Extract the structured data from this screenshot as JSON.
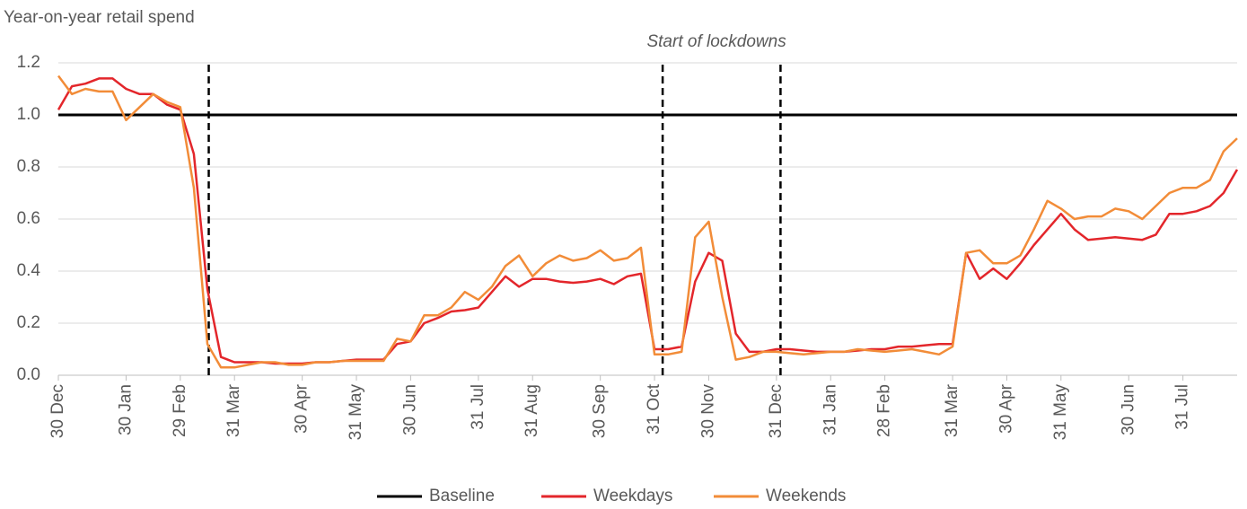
{
  "chart_data": {
    "type": "line",
    "ylabel": "Year-on-year  retail spend",
    "annotation": "Start of lockdowns",
    "vlines": [
      11.1,
      44.6,
      53.3
    ],
    "categories": [
      "30 Dec",
      null,
      null,
      null,
      null,
      "30 Jan",
      null,
      null,
      null,
      "29 Feb",
      null,
      null,
      null,
      "31 Mar",
      null,
      null,
      null,
      null,
      "30 Apr",
      null,
      null,
      null,
      "31 May",
      null,
      null,
      null,
      "30 Jun",
      null,
      null,
      null,
      null,
      "31 Jul",
      null,
      null,
      null,
      "31 Aug",
      null,
      null,
      null,
      null,
      "30 Sep",
      null,
      null,
      null,
      "31 Oct",
      null,
      null,
      null,
      "30 Nov",
      null,
      null,
      null,
      null,
      "31 Dec",
      null,
      null,
      null,
      "31 Jan",
      null,
      null,
      null,
      "28 Feb",
      null,
      null,
      null,
      null,
      "31 Mar",
      null,
      null,
      null,
      "30 Apr",
      null,
      null,
      null,
      "31 May",
      null,
      null,
      null,
      null,
      "30 Jun",
      null,
      null,
      null,
      "31 Jul",
      null,
      null,
      null,
      null
    ],
    "series": [
      {
        "name": "Baseline",
        "color": "#000000",
        "values": [
          1,
          1,
          1,
          1,
          1,
          1,
          1,
          1,
          1,
          1,
          1,
          1,
          1,
          1,
          1,
          1,
          1,
          1,
          1,
          1,
          1,
          1,
          1,
          1,
          1,
          1,
          1,
          1,
          1,
          1,
          1,
          1,
          1,
          1,
          1,
          1,
          1,
          1,
          1,
          1,
          1,
          1,
          1,
          1,
          1,
          1,
          1,
          1,
          1,
          1,
          1,
          1,
          1,
          1,
          1,
          1,
          1,
          1,
          1,
          1,
          1,
          1,
          1,
          1,
          1,
          1,
          1,
          1,
          1,
          1,
          1,
          1,
          1,
          1,
          1,
          1,
          1,
          1,
          1,
          1,
          1,
          1,
          1,
          1,
          1,
          1,
          1,
          1
        ]
      },
      {
        "name": "Weekdays",
        "color": "#e3262b",
        "values": [
          1.02,
          1.11,
          1.12,
          1.14,
          1.14,
          1.1,
          1.08,
          1.08,
          1.04,
          1.02,
          0.85,
          0.33,
          0.07,
          0.05,
          0.05,
          0.05,
          0.045,
          0.045,
          0.045,
          0.05,
          0.05,
          0.055,
          0.06,
          0.06,
          0.06,
          0.12,
          0.13,
          0.2,
          0.22,
          0.245,
          0.25,
          0.26,
          0.32,
          0.38,
          0.34,
          0.37,
          0.37,
          0.36,
          0.355,
          0.36,
          0.37,
          0.35,
          0.38,
          0.39,
          0.1,
          0.1,
          0.11,
          0.36,
          0.47,
          0.44,
          0.16,
          0.09,
          0.09,
          0.1,
          0.1,
          0.095,
          0.09,
          0.09,
          0.09,
          0.095,
          0.1,
          0.1,
          0.11,
          0.11,
          0.115,
          0.12,
          0.12,
          0.47,
          0.37,
          0.41,
          0.37,
          0.43,
          0.5,
          0.56,
          0.62,
          0.56,
          0.52,
          0.525,
          0.53,
          0.525,
          0.52,
          0.54,
          0.62,
          0.62,
          0.63,
          0.65,
          0.7,
          0.79
        ]
      },
      {
        "name": "Weekends",
        "color": "#f28c38",
        "values": [
          1.15,
          1.08,
          1.1,
          1.09,
          1.09,
          0.98,
          1.03,
          1.08,
          1.05,
          1.03,
          0.72,
          0.12,
          0.03,
          0.03,
          0.04,
          0.05,
          0.05,
          0.04,
          0.04,
          0.05,
          0.05,
          0.055,
          0.055,
          0.055,
          0.055,
          0.14,
          0.13,
          0.23,
          0.23,
          0.26,
          0.32,
          0.29,
          0.34,
          0.42,
          0.46,
          0.38,
          0.43,
          0.46,
          0.44,
          0.45,
          0.48,
          0.44,
          0.45,
          0.49,
          0.08,
          0.08,
          0.09,
          0.53,
          0.59,
          0.3,
          0.06,
          0.07,
          0.09,
          0.09,
          0.085,
          0.08,
          0.085,
          0.09,
          0.09,
          0.1,
          0.095,
          0.09,
          0.095,
          0.1,
          0.09,
          0.08,
          0.11,
          0.47,
          0.48,
          0.43,
          0.43,
          0.46,
          0.56,
          0.67,
          0.64,
          0.6,
          0.61,
          0.61,
          0.64,
          0.63,
          0.6,
          0.65,
          0.7,
          0.72,
          0.72,
          0.75,
          0.86,
          0.91
        ]
      }
    ],
    "ylim": [
      0,
      1.2
    ],
    "yticks": [
      {
        "value": 0,
        "label": "0.0"
      },
      0.2,
      0.4,
      0.6,
      0.8,
      {
        "value": 1,
        "label": "1.0"
      },
      1.2
    ],
    "grid": true
  }
}
